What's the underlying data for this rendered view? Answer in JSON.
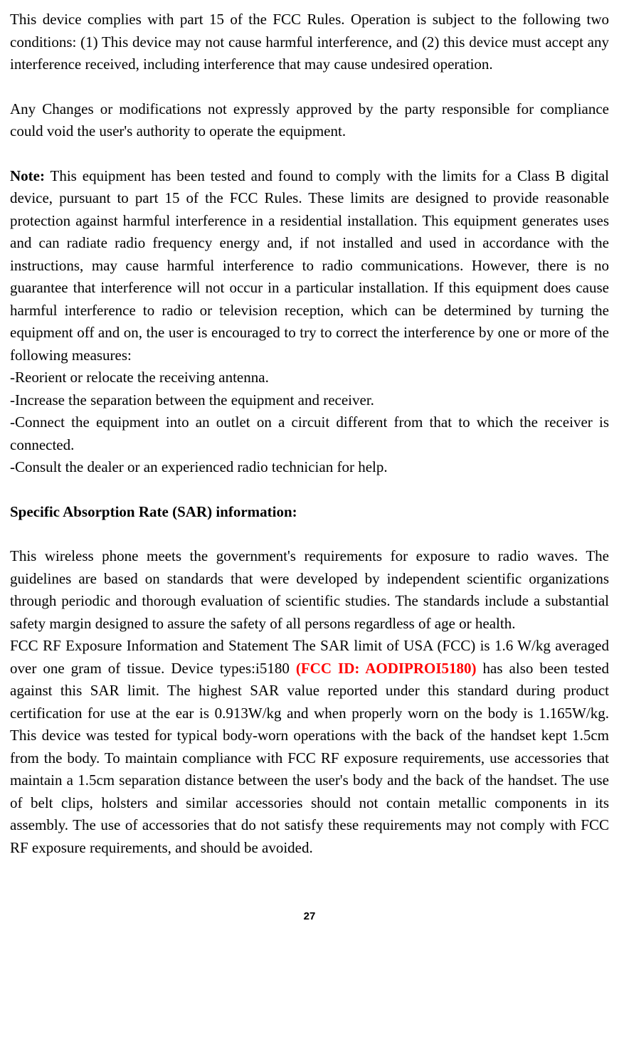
{
  "para1": "This device complies with part 15 of the FCC Rules. Operation is subject to the following two conditions: (1) This device may not cause harmful interference, and (2) this device must accept any interference received, including interference that may cause undesired operation.",
  "para2": "Any Changes or modifications not expressly approved by the party responsible for compliance could void the user's authority to operate the equipment.",
  "note_label": "Note:",
  "para3": " This equipment has been tested and found to comply with the limits for a Class B digital device, pursuant to part 15 of the FCC Rules. These limits are designed to provide reasonable protection against harmful interference in a residential installation. This equipment generates uses and can radiate radio frequency energy and, if not installed and used in accordance with the instructions, may cause harmful interference to radio communications. However, there is no guarantee that interference will not occur in a particular installation. If this equipment does cause harmful interference to radio or television reception, which can be determined by turning the equipment off and on, the user is encouraged to try to correct the interference by one or more of the following measures:",
  "measure1": "-Reorient or relocate the receiving antenna.",
  "measure2": "-Increase the separation between the equipment and receiver.",
  "measure3": "-Connect the equipment into an outlet on a circuit different from that to which the receiver is connected.",
  "measure4": "-Consult the dealer or an experienced radio technician for help.",
  "sar_heading": "Specific Absorption Rate (SAR) information:",
  "para4": "This wireless phone meets the government's requirements for exposure to radio waves. The guidelines are based on standards that were developed by independent scientific organizations through periodic and thorough evaluation of scientific studies. The standards include a substantial safety margin designed to assure the safety of all persons regardless of age or health.",
  "para5_a": "FCC RF Exposure Information and Statement The SAR limit of USA (FCC) is 1.6 W/kg averaged over one gram of tissue. Device types:i5180 ",
  "fcc_id": "(FCC ID: AODIPROI5180)",
  "para5_b": "  has also been tested against this SAR limit. The highest SAR value reported under this standard during product certification for use at the ear is 0.913W/kg and when properly worn on the body is 1.165W/kg. This device was tested for typical body-worn operations with the back of the handset kept 1.5cm from the body. To maintain compliance with FCC RF exposure requirements, use accessories that maintain a 1.5cm separation distance between the user's body and the back of the handset. The use of belt clips, holsters and similar accessories should not contain metallic components in its assembly. The use of accessories that do not satisfy these requirements may not comply with FCC RF exposure requirements, and should be avoided.",
  "page_number": "27"
}
